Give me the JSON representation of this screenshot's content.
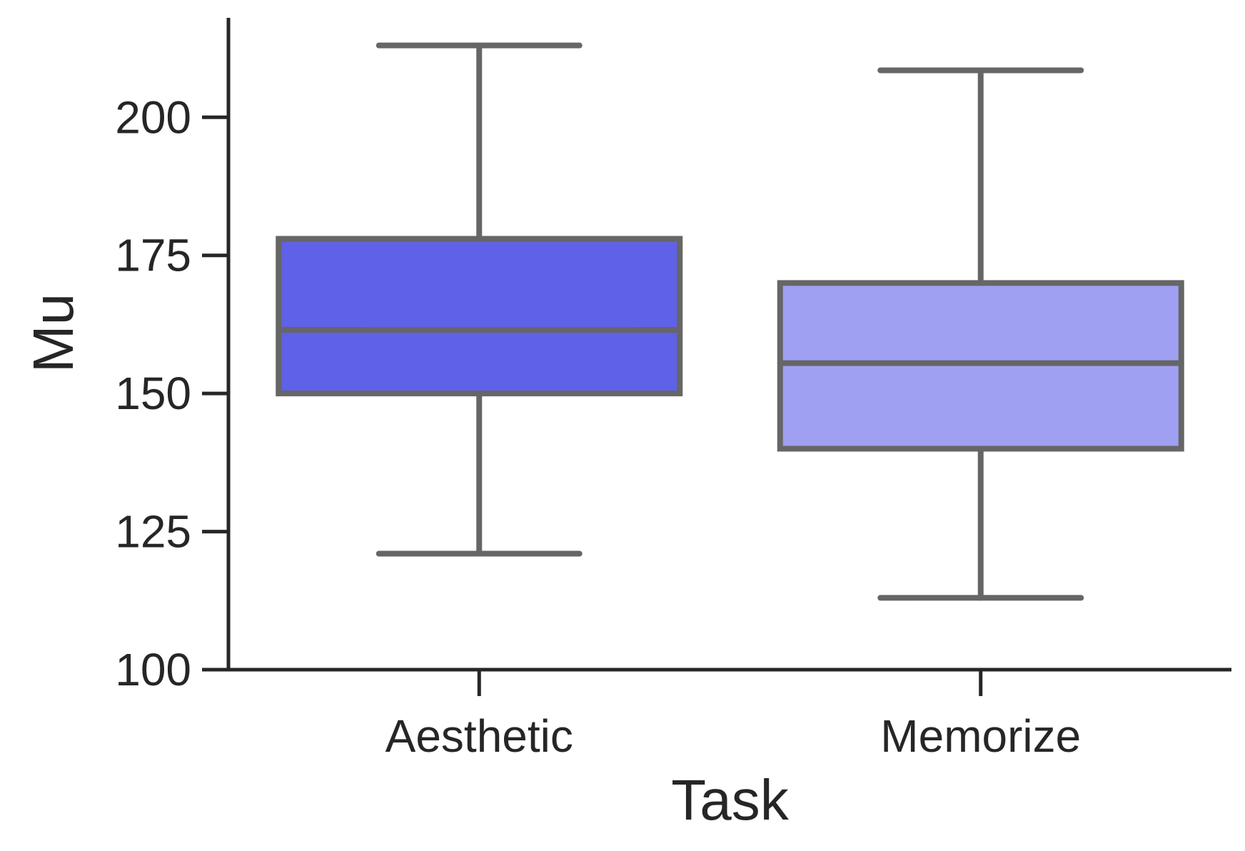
{
  "chart_data": {
    "type": "box",
    "title": "",
    "xlabel": "Task",
    "ylabel": "Mu",
    "ylim": [
      100,
      218
    ],
    "yticks": [
      100,
      125,
      150,
      175,
      200
    ],
    "grid": false,
    "legend": "none",
    "categories": [
      "Aesthetic",
      "Memorize"
    ],
    "boxes": [
      {
        "category": "Aesthetic",
        "whisker_low": 121,
        "q1": 150,
        "median": 161.5,
        "q3": 178,
        "whisker_high": 213,
        "color": "#5f61e6"
      },
      {
        "category": "Memorize",
        "whisker_low": 113,
        "q1": 140,
        "median": 155.5,
        "q3": 170,
        "whisker_high": 208.5,
        "color": "#9fa0f2"
      }
    ],
    "colors": {
      "axis": "#262626",
      "box_edge": "#666666"
    }
  }
}
